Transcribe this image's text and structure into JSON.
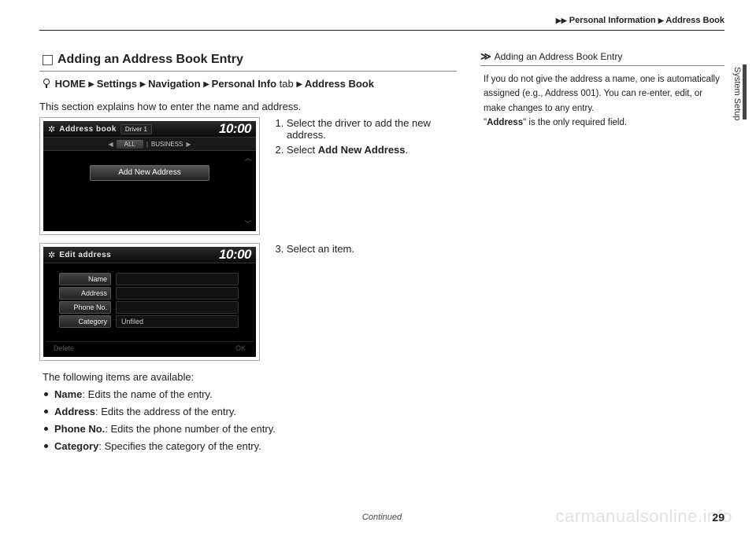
{
  "header": {
    "crumb1": "Personal Information",
    "crumb2": "Address Book"
  },
  "side_tab": "System Setup",
  "section": {
    "title": "Adding an Address Book Entry",
    "breadcrumb": {
      "home": "HOME",
      "p1": "Settings",
      "p2": "Navigation",
      "p3_bold": "Personal Info",
      "p3_plain": " tab",
      "p4": "Address Book"
    },
    "intro": "This section explains how to enter the name and address."
  },
  "screenshot1": {
    "title": "Address book",
    "driver": "Driver 1",
    "clock": "10:00",
    "tab_all": "ALL",
    "tab_business": "BUSINESS",
    "button": "Add New Address"
  },
  "steps1": {
    "s1a": "Select the driver to add the new",
    "s1b": "address.",
    "s2a": "Select ",
    "s2b": "Add New Address",
    "s2c": "."
  },
  "screenshot2": {
    "title": "Edit address",
    "clock": "10:00",
    "rows": {
      "name": "Name",
      "address": "Address",
      "phone": "Phone No.",
      "category": "Category",
      "category_val": "Unfiled"
    },
    "delete": "Delete",
    "ok": "OK"
  },
  "steps2": {
    "s3": "Select an item."
  },
  "available": {
    "intro": "The following items are available:",
    "name_b": "Name",
    "name_t": ": Edits the name of the entry.",
    "addr_b": "Address",
    "addr_t": ": Edits the address of the entry.",
    "phone_b": "Phone No.",
    "phone_t": ": Edits the phone number of the entry.",
    "cat_b": "Category",
    "cat_t": ": Specifies the category of the entry."
  },
  "sidebar": {
    "title": "Adding an Address Book Entry",
    "body1": "If you do not give the address a name, one is automatically assigned (e.g., Address 001). You can re-enter, edit, or make changes to any entry.",
    "body2a": "\"",
    "body2b": "Address",
    "body2c": "\" is the only required field."
  },
  "footer": {
    "continued": "Continued",
    "page": "29"
  },
  "watermark": "carmanualsonline.info"
}
